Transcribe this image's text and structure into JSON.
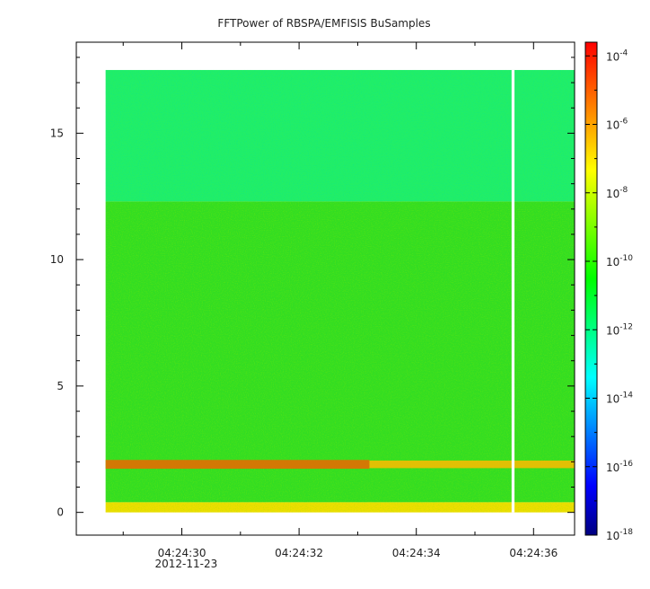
{
  "chart_data": {
    "type": "heatmap",
    "title": "FFTPower of RBSPA/EMFISIS  BuSamples",
    "xlabel": "",
    "ylabel": "",
    "x_ticks": [
      {
        "value": 30,
        "label": "04:24:30",
        "sublabel": "2012-11-23"
      },
      {
        "value": 32,
        "label": "04:24:32"
      },
      {
        "value": 34,
        "label": "04:24:34"
      },
      {
        "value": 36,
        "label": "04:24:36"
      }
    ],
    "x_minor_ticks": [
      29,
      31,
      33,
      35
    ],
    "xlim": [
      28.2,
      36.7
    ],
    "data_x_range": [
      28.7,
      36.7
    ],
    "y_ticks": [
      {
        "value": 0,
        "label": "0"
      },
      {
        "value": 5,
        "label": "5"
      },
      {
        "value": 10,
        "label": "10"
      },
      {
        "value": 15,
        "label": "15"
      }
    ],
    "ylim": [
      -0.9,
      18.6
    ],
    "data_y_range": [
      0,
      17.5
    ],
    "colorbar": {
      "scale": "log",
      "range_exponents": [
        -18,
        -3.6
      ],
      "tick_base": "10",
      "tick_exponents": [
        "-18",
        "-16",
        "-14",
        "-12",
        "-10",
        "-8",
        "-6",
        "-4"
      ],
      "colors": [
        "#000080",
        "#0000ff",
        "#00ffff",
        "#00ff00",
        "#ffff00",
        "#ff0000"
      ]
    },
    "regions": [
      {
        "y_range": [
          12.3,
          17.5
        ],
        "level_exponent": -11.5,
        "color": "#22ee66"
      },
      {
        "y_range": [
          0.4,
          12.3
        ],
        "level_exponent": -9.6,
        "color": "#33dd22"
      },
      {
        "y_range": [
          0.0,
          0.4
        ],
        "level_exponent": -8.0,
        "color": "#eedd00"
      }
    ],
    "bands": [
      {
        "y_center": 1.9,
        "y_width": 0.35,
        "level_exponent": -6.5,
        "x_range": [
          28.7,
          33.2
        ],
        "color": "#ee6600"
      },
      {
        "y_center": 1.9,
        "y_width": 0.3,
        "level_exponent": -7.5,
        "x_range": [
          33.2,
          36.7
        ],
        "color": "#ffbb00"
      }
    ],
    "data_gaps": [
      {
        "x": 35.65,
        "width": 0.05
      }
    ]
  }
}
